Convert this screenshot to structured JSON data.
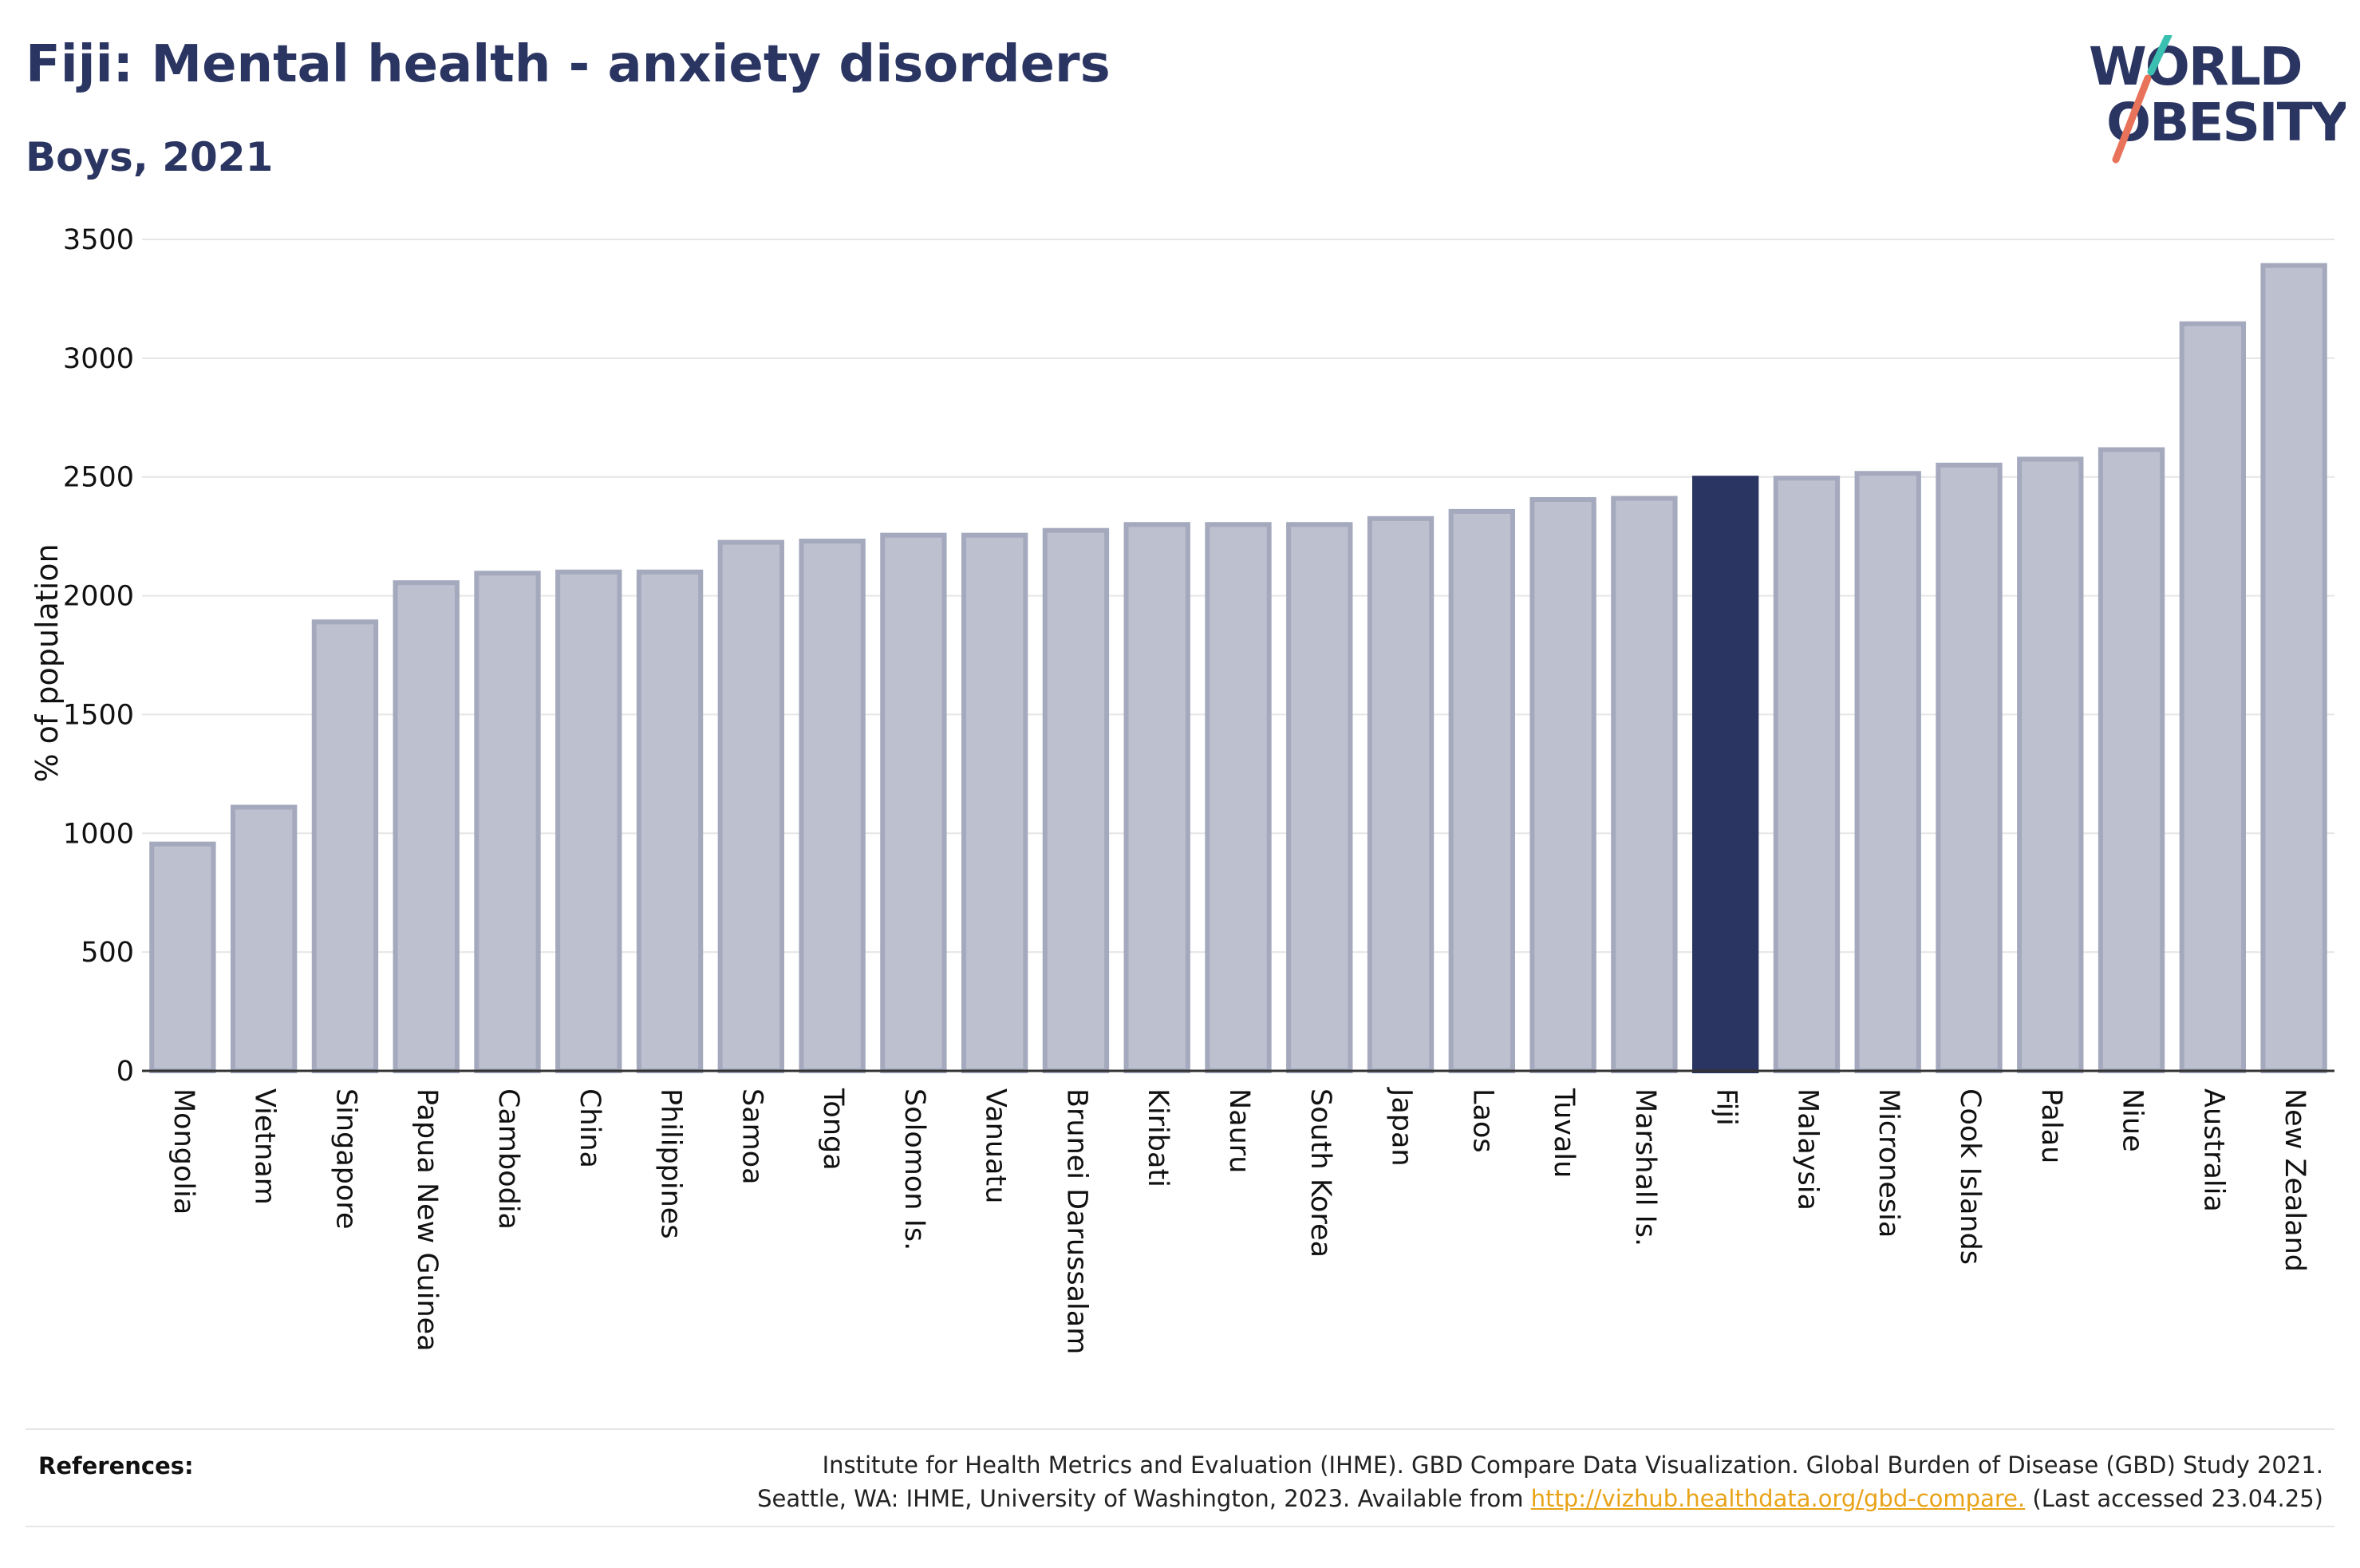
{
  "header": {
    "title": "Fiji: Mental health - anxiety disorders",
    "subtitle": "Boys, 2021"
  },
  "logo": {
    "line1": "WORLD",
    "line2": "OBESITY",
    "accent_teal": "#3bbfb1",
    "accent_coral": "#e8735a",
    "text_color": "#2b3562"
  },
  "colors": {
    "highlight": "#2b3562",
    "bar_fill": "#bcc0cf",
    "bar_stroke": "#a4a9bd",
    "grid": "#e6e6e6"
  },
  "chart_data": {
    "type": "bar",
    "title": "Fiji: Mental health - anxiety disorders",
    "subtitle": "Boys, 2021",
    "xlabel": "",
    "ylabel": "% of population",
    "ylim": [
      0,
      3500
    ],
    "yticks": [
      0,
      500,
      1000,
      1500,
      2000,
      2500,
      3000,
      3500
    ],
    "grid": true,
    "highlight": "Fiji",
    "categories": [
      "Mongolia",
      "Vietnam",
      "Singapore",
      "Papua New Guinea",
      "Cambodia",
      "China",
      "Philippines",
      "Samoa",
      "Tonga",
      "Solomon Is.",
      "Vanuatu",
      "Brunei Darussalam",
      "Kiribati",
      "Nauru",
      "South Korea",
      "Japan",
      "Laos",
      "Tuvalu",
      "Marshall Is.",
      "Fiji",
      "Malaysia",
      "Micronesia",
      "Cook Islands",
      "Palau",
      "Niue",
      "Australia",
      "New Zealand"
    ],
    "values": [
      955,
      1110,
      1890,
      2055,
      2095,
      2100,
      2100,
      2225,
      2230,
      2255,
      2255,
      2275,
      2300,
      2300,
      2300,
      2325,
      2355,
      2405,
      2410,
      2495,
      2495,
      2515,
      2550,
      2575,
      2615,
      3145,
      3390
    ]
  },
  "references": {
    "label": "References:",
    "line1": "Institute for Health Metrics and Evaluation (IHME). GBD Compare Data Visualization. Global Burden of Disease (GBD) Study 2021.",
    "line2_prefix": "Seattle, WA: IHME, University of Washington, 2023. Available from ",
    "link_text": "http://vizhub.healthdata.org/gbd-compare.",
    "line2_suffix": " (Last accessed 23.04.25)"
  }
}
